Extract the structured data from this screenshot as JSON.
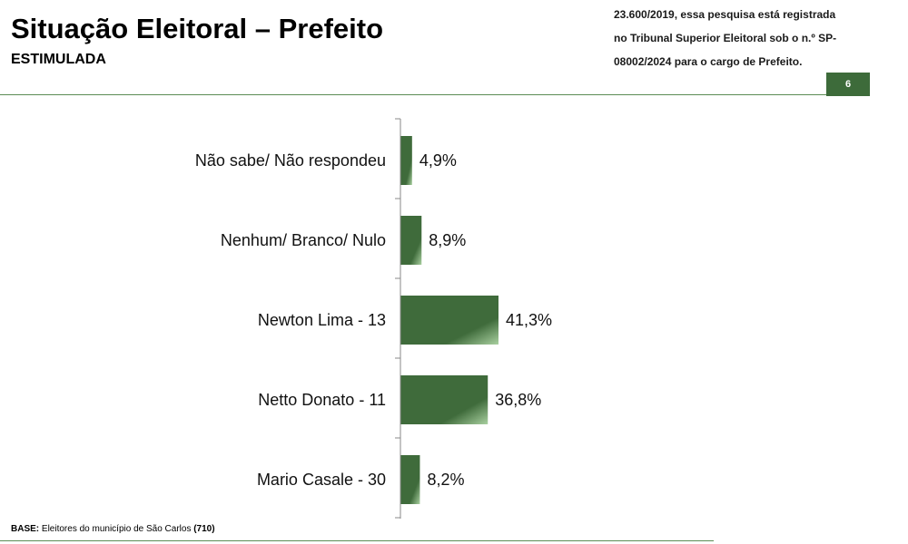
{
  "header": {
    "title": "Situação Eleitoral – Prefeito",
    "subtitle": "ESTIMULADA",
    "notice_lines": [
      "23.600/2019, essa pesquisa está registrada",
      "no Tribunal Superior Eleitoral sob o n.º SP-",
      "08002/2024 para o cargo de Prefeito."
    ],
    "page_number": "6"
  },
  "footer": {
    "base_label": "BASE:",
    "base_text": "Eleitores do município de São Carlos",
    "base_count": "(710)"
  },
  "colors": {
    "bar_dark": "#3f6b3b",
    "bar_light": "#a9d0a0",
    "accent": "#3d6b3a"
  },
  "chart_data": {
    "type": "bar",
    "orientation": "horizontal",
    "title": "",
    "xlabel": "",
    "ylabel": "",
    "xlim": [
      0,
      75
    ],
    "grid": false,
    "legend": "none",
    "categories": [
      "Não sabe/ Não respondeu",
      "Nenhum/ Branco/ Nulo",
      "Newton Lima - 13",
      "Netto Donato - 11",
      "Mario Casale - 30"
    ],
    "values": [
      4.9,
      8.9,
      41.3,
      36.8,
      8.2
    ],
    "value_labels": [
      "4,9%",
      "8,9%",
      "41,3%",
      "36,8%",
      "8,2%"
    ]
  }
}
